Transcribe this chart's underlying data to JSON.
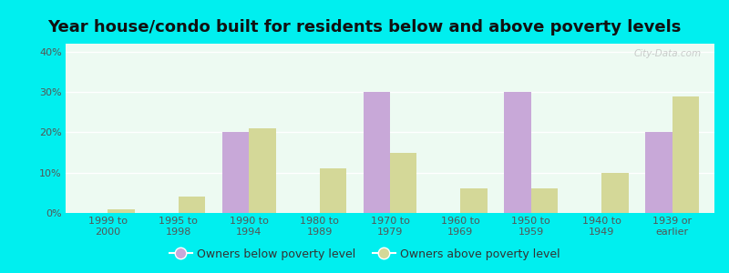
{
  "title": "Year house/condo built for residents below and above poverty levels",
  "categories": [
    "1999 to\n2000",
    "1995 to\n1998",
    "1990 to\n1994",
    "1980 to\n1989",
    "1970 to\n1979",
    "1960 to\n1969",
    "1950 to\n1959",
    "1940 to\n1949",
    "1939 or\nearlier"
  ],
  "below_poverty": [
    0,
    0,
    20,
    0,
    30,
    0,
    30,
    0,
    20
  ],
  "above_poverty": [
    1,
    4,
    21,
    11,
    15,
    6,
    6,
    10,
    29
  ],
  "below_color": "#c8a8d8",
  "above_color": "#d4d898",
  "background_color": "#edfaf2",
  "outer_background": "#00efef",
  "ylim": [
    0,
    42
  ],
  "yticks": [
    0,
    10,
    20,
    30,
    40
  ],
  "ytick_labels": [
    "0%",
    "10%",
    "20%",
    "30%",
    "40%"
  ],
  "bar_width": 0.38,
  "legend_below_label": "Owners below poverty level",
  "legend_above_label": "Owners above poverty level",
  "title_fontsize": 13,
  "tick_fontsize": 8,
  "legend_fontsize": 9,
  "watermark": "City-Data.com"
}
